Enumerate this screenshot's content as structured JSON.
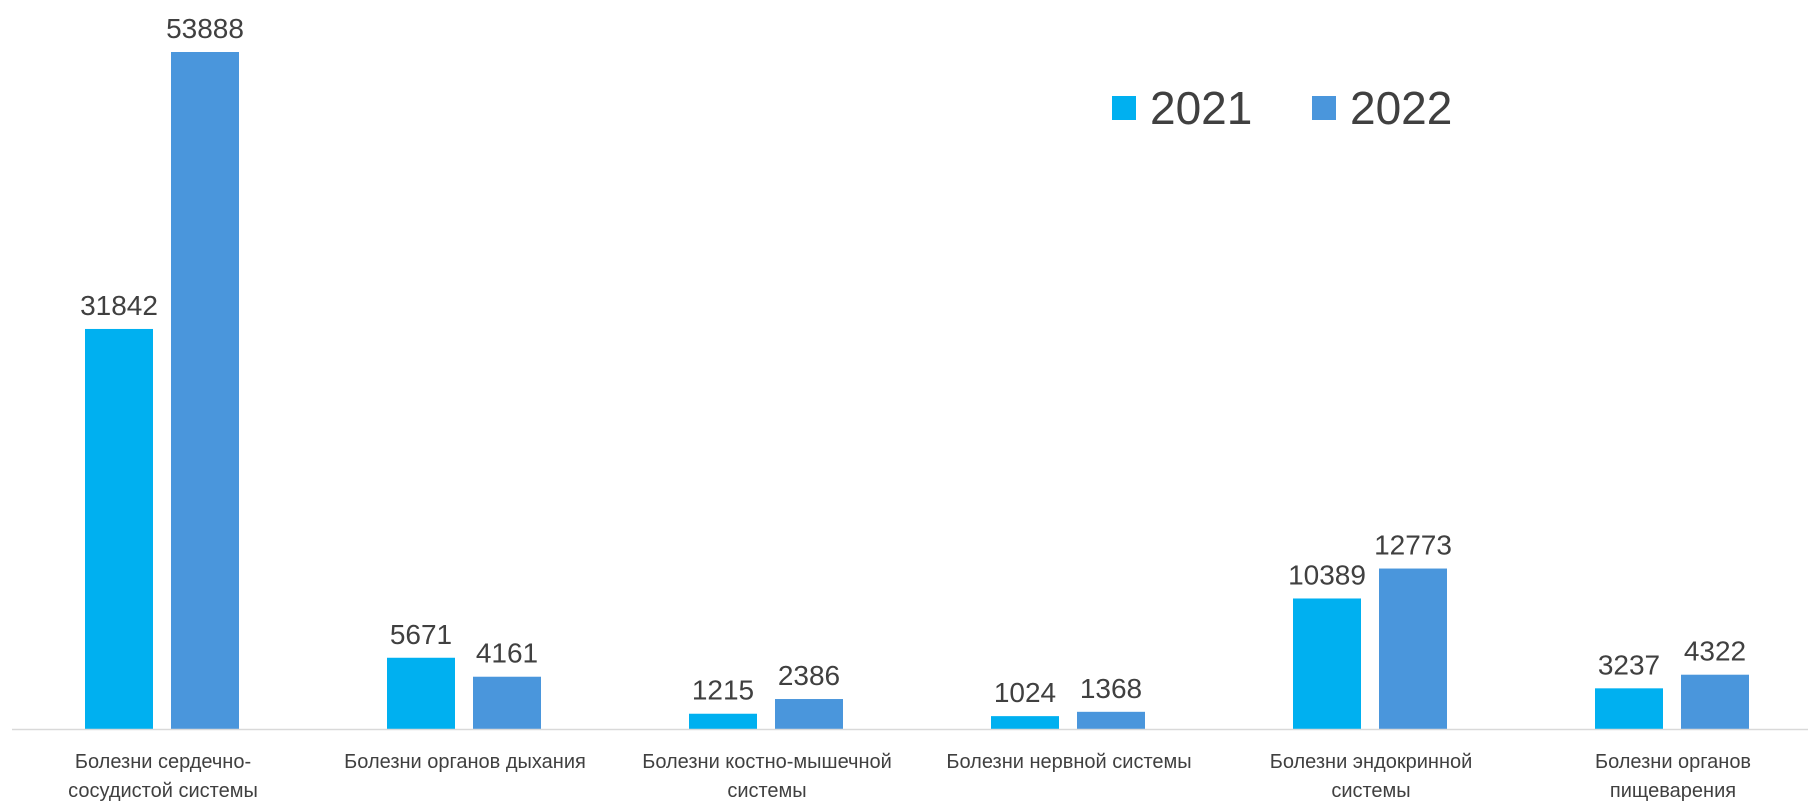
{
  "chart_data": {
    "type": "bar",
    "categories": [
      [
        "Болезни сердечно-",
        "сосудистой системы"
      ],
      [
        "Болезни органов дыхания"
      ],
      [
        "Болезни костно-мышечной",
        "системы"
      ],
      [
        "Болезни нервной системы"
      ],
      [
        "Болезни эндокринной",
        "системы"
      ],
      [
        "Болезни органов",
        "пищеварения"
      ]
    ],
    "series": [
      {
        "name": "2021",
        "color": "#00B0F0",
        "values": [
          31842,
          5671,
          1215,
          1024,
          10389,
          3237
        ]
      },
      {
        "name": "2022",
        "color": "#4A96DC",
        "values": [
          53888,
          4161,
          2386,
          1368,
          12773,
          4322
        ]
      }
    ],
    "ylim": [
      0,
      53888
    ],
    "grid": false,
    "legend_position": "top-right",
    "axis_color": "#D9D9D9"
  }
}
